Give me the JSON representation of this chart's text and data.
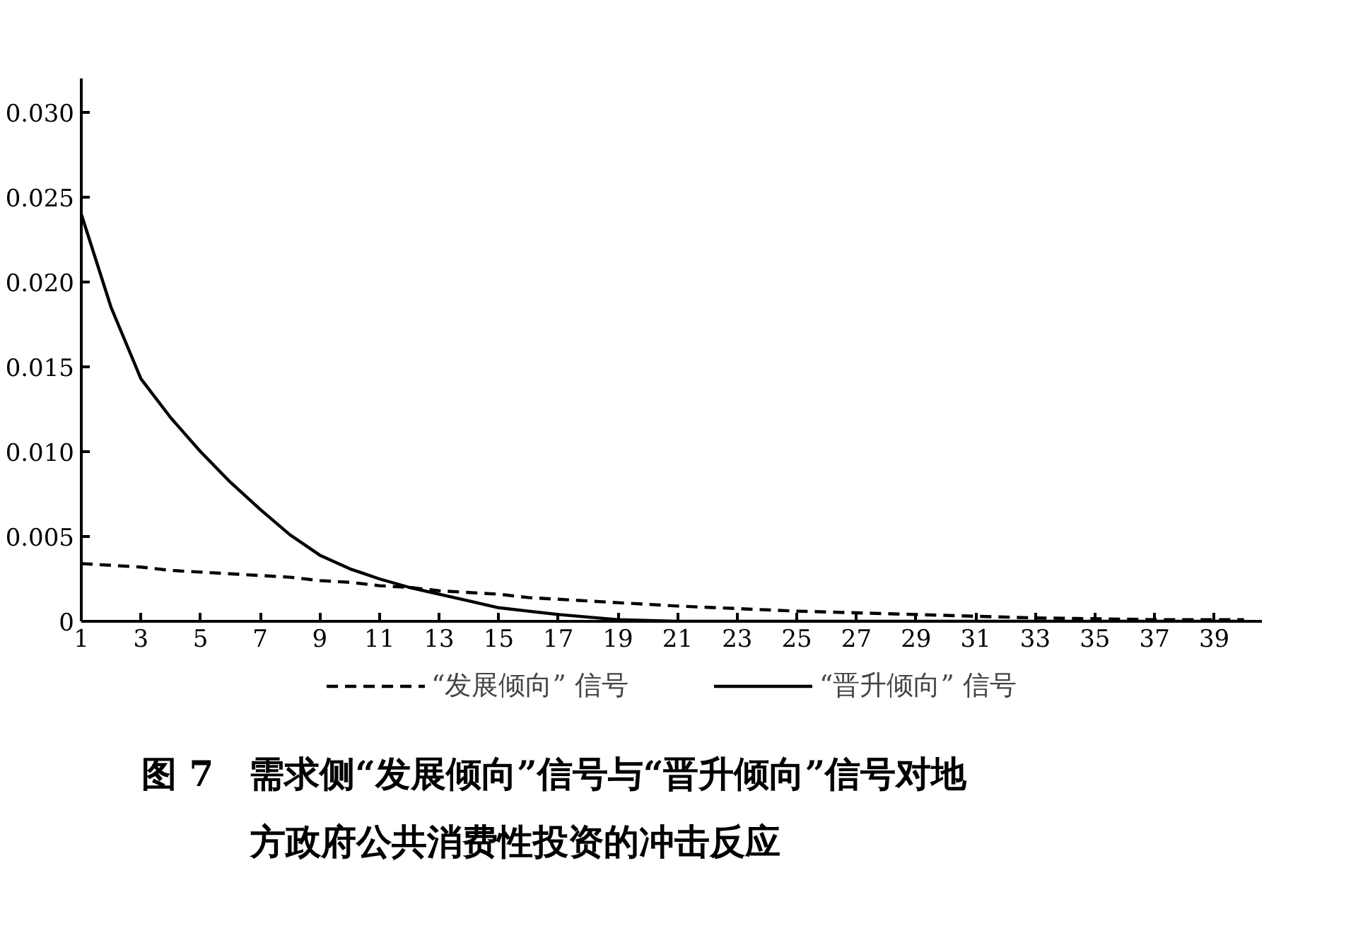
{
  "chart_data": {
    "type": "line",
    "title": "图 7　需求侧“发展倾向”信号与“晋升倾向”信号对地方政府公共消费性投资的冲击反应",
    "x": [
      1,
      2,
      3,
      4,
      5,
      6,
      7,
      8,
      9,
      10,
      11,
      12,
      13,
      14,
      15,
      16,
      17,
      19,
      21,
      25,
      29,
      33,
      37,
      40
    ],
    "series": [
      {
        "name": "“发展倾向” 信号",
        "color": "#000000",
        "line_style": "dashed",
        "values": [
          0.0034,
          0.0033,
          0.0032,
          0.003,
          0.0029,
          0.0028,
          0.0027,
          0.0026,
          0.0024,
          0.0023,
          0.0021,
          0.002,
          0.0018,
          0.0017,
          0.0016,
          0.0014,
          0.0013,
          0.0011,
          0.0009,
          0.0006,
          0.0004,
          0.0002,
          0.0001,
          0.0001
        ]
      },
      {
        "name": "“晋升倾向” 信号",
        "color": "#000000",
        "line_style": "solid",
        "values": [
          0.024,
          0.0185,
          0.0143,
          0.012,
          0.01,
          0.0082,
          0.0066,
          0.0051,
          0.0039,
          0.0031,
          0.0025,
          0.002,
          0.0016,
          0.0012,
          0.0008,
          0.0006,
          0.0004,
          0.0001,
          0.0,
          0.0,
          0.0,
          0.0,
          0.0,
          0.0
        ]
      }
    ],
    "xlim": [
      1,
      40.6
    ],
    "ylim": [
      0,
      0.032
    ],
    "xticks": [
      1,
      3,
      5,
      7,
      9,
      11,
      13,
      15,
      17,
      19,
      21,
      23,
      25,
      27,
      29,
      31,
      33,
      35,
      37,
      39
    ],
    "yticks": [
      0,
      {
        "value": 0.005,
        "label": "0.005"
      },
      {
        "value": 0.01,
        "label": "0.010"
      },
      {
        "value": 0.015,
        "label": "0.015"
      },
      {
        "value": 0.02,
        "label": "0.020"
      },
      {
        "value": 0.025,
        "label": "0.025"
      },
      {
        "value": 0.03,
        "label": "0.030"
      }
    ],
    "grid": false,
    "legend": "bottom",
    "marker": "none"
  }
}
